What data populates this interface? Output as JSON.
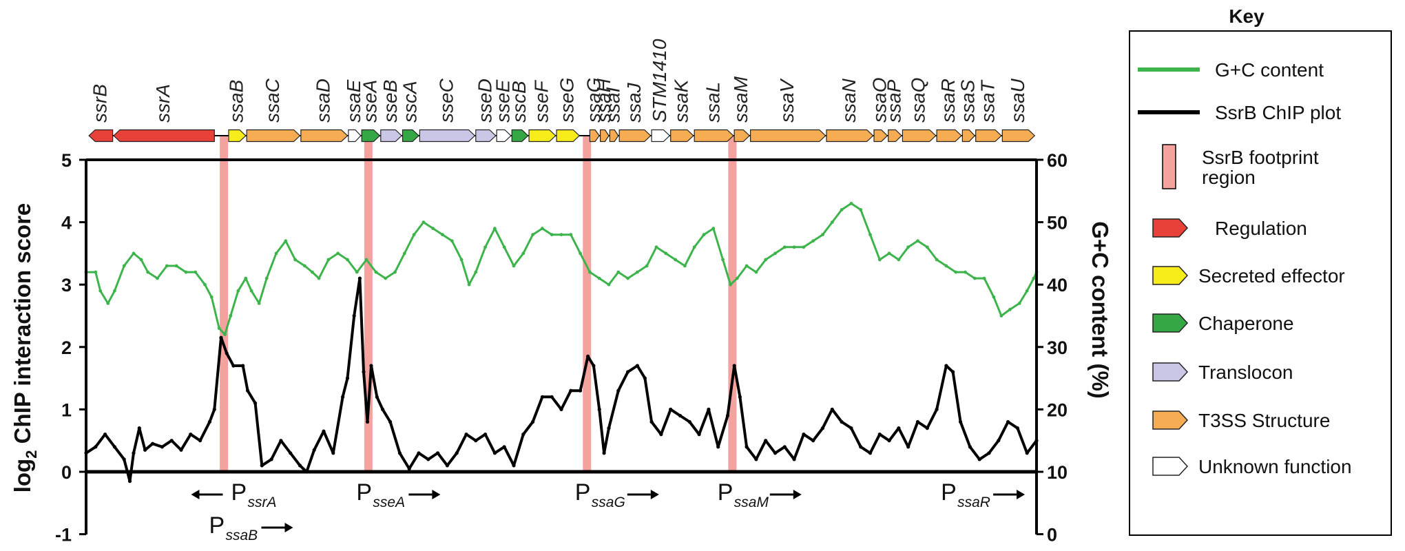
{
  "colors": {
    "regulation": "#e8413a",
    "secreted_effector": "#f5ec1a",
    "chaperone": "#35a845",
    "translocon": "#c9c6e6",
    "t3ss_structure": "#f5ac52",
    "unknown_function": "#ffffff",
    "footprint": "#f4a29e",
    "gc_line": "#3cb44b",
    "chip_line": "#000000"
  },
  "chart_data": {
    "type": "line",
    "x_range": [
      0,
      100
    ],
    "left_axis": {
      "label_prefix": "log",
      "label_sub": "2",
      "label_suffix": " ChIP interaction score",
      "range": [
        -1,
        5
      ],
      "ticks": [
        "-1",
        "0",
        "1",
        "2",
        "3",
        "4",
        "5"
      ]
    },
    "right_axis": {
      "label": "G+C content (%)",
      "range": [
        0,
        60
      ],
      "ticks": [
        "0",
        "10",
        "20",
        "30",
        "40",
        "50",
        "60"
      ]
    },
    "genes": [
      {
        "name": "ssrB",
        "start": 0.3,
        "end": 2.8,
        "dir": -1,
        "cat": "regulation"
      },
      {
        "name": "ssrA",
        "start": 2.9,
        "end": 13.5,
        "dir": -1,
        "cat": "regulation"
      },
      {
        "name": "ssaB",
        "start": 15.0,
        "end": 16.8,
        "dir": 1,
        "cat": "secreted_effector"
      },
      {
        "name": "ssaC",
        "start": 16.9,
        "end": 22.5,
        "dir": 1,
        "cat": "t3ss_structure"
      },
      {
        "name": "ssaD",
        "start": 22.6,
        "end": 27.5,
        "dir": 1,
        "cat": "t3ss_structure"
      },
      {
        "name": "ssaE",
        "start": 27.6,
        "end": 28.9,
        "dir": 1,
        "cat": "unknown_function"
      },
      {
        "name": "sseA",
        "start": 29.0,
        "end": 30.9,
        "dir": 1,
        "cat": "chaperone"
      },
      {
        "name": "sseB",
        "start": 31.0,
        "end": 33.2,
        "dir": 1,
        "cat": "translocon"
      },
      {
        "name": "sscA",
        "start": 33.3,
        "end": 35.0,
        "dir": 1,
        "cat": "chaperone"
      },
      {
        "name": "sseC",
        "start": 35.1,
        "end": 40.9,
        "dir": 1,
        "cat": "translocon"
      },
      {
        "name": "sseD",
        "start": 41.0,
        "end": 43.1,
        "dir": 1,
        "cat": "translocon"
      },
      {
        "name": "sseE",
        "start": 43.2,
        "end": 44.7,
        "dir": 1,
        "cat": "unknown_function"
      },
      {
        "name": "sscB",
        "start": 44.8,
        "end": 46.5,
        "dir": 1,
        "cat": "chaperone"
      },
      {
        "name": "sseF",
        "start": 46.6,
        "end": 49.4,
        "dir": 1,
        "cat": "secreted_effector"
      },
      {
        "name": "sseG",
        "start": 49.5,
        "end": 51.9,
        "dir": 1,
        "cat": "secreted_effector"
      },
      {
        "name": "ssaG",
        "start": 53.0,
        "end": 54.0,
        "dir": 1,
        "cat": "t3ss_structure"
      },
      {
        "name": "ssaH",
        "start": 54.1,
        "end": 55.0,
        "dir": 1,
        "cat": "t3ss_structure"
      },
      {
        "name": "ssaI",
        "start": 55.1,
        "end": 56.0,
        "dir": 1,
        "cat": "t3ss_structure"
      },
      {
        "name": "ssaJ",
        "start": 56.1,
        "end": 59.4,
        "dir": 1,
        "cat": "t3ss_structure"
      },
      {
        "name": "STM1410",
        "start": 59.5,
        "end": 61.4,
        "dir": 1,
        "cat": "unknown_function"
      },
      {
        "name": "ssaK",
        "start": 61.5,
        "end": 63.9,
        "dir": 1,
        "cat": "t3ss_structure"
      },
      {
        "name": "ssaL",
        "start": 64.0,
        "end": 68.1,
        "dir": 1,
        "cat": "t3ss_structure"
      },
      {
        "name": "ssaM",
        "start": 68.2,
        "end": 69.8,
        "dir": 1,
        "cat": "t3ss_structure"
      },
      {
        "name": "ssaV",
        "start": 69.9,
        "end": 77.8,
        "dir": 1,
        "cat": "t3ss_structure"
      },
      {
        "name": "ssaN",
        "start": 77.9,
        "end": 82.8,
        "dir": 1,
        "cat": "t3ss_structure"
      },
      {
        "name": "ssaO",
        "start": 82.9,
        "end": 84.3,
        "dir": 1,
        "cat": "t3ss_structure"
      },
      {
        "name": "ssaP",
        "start": 84.4,
        "end": 85.8,
        "dir": 1,
        "cat": "t3ss_structure"
      },
      {
        "name": "ssaQ",
        "start": 85.9,
        "end": 89.4,
        "dir": 1,
        "cat": "t3ss_structure"
      },
      {
        "name": "ssaR",
        "start": 89.5,
        "end": 92.1,
        "dir": 1,
        "cat": "t3ss_structure"
      },
      {
        "name": "ssaS",
        "start": 92.2,
        "end": 93.5,
        "dir": 1,
        "cat": "t3ss_structure"
      },
      {
        "name": "ssaT",
        "start": 93.6,
        "end": 96.3,
        "dir": 1,
        "cat": "t3ss_structure"
      },
      {
        "name": "ssaU",
        "start": 96.4,
        "end": 99.8,
        "dir": 1,
        "cat": "t3ss_structure"
      }
    ],
    "footprints": [
      14.5,
      29.7,
      52.7,
      68.0
    ],
    "promoters": [
      {
        "main": "P",
        "sub": "ssrA",
        "x": 12.5,
        "row": 0,
        "dir": -1
      },
      {
        "main": "P",
        "sub": "ssaB",
        "x": 12.5,
        "row": 1,
        "dir": 1
      },
      {
        "main": "P",
        "sub": "sseA",
        "x": 28.0,
        "row": 0,
        "dir": 1
      },
      {
        "main": "P",
        "sub": "ssaG",
        "x": 51.0,
        "row": 0,
        "dir": 1
      },
      {
        "main": "P",
        "sub": "ssaM",
        "x": 66.0,
        "row": 0,
        "dir": 1
      },
      {
        "main": "P",
        "sub": "ssaR",
        "x": 89.5,
        "row": 0,
        "dir": 1
      }
    ],
    "series": [
      {
        "name": "SsrB ChIP plot",
        "axis": "left",
        "points": [
          [
            0,
            0.3
          ],
          [
            1,
            0.4
          ],
          [
            2,
            0.6
          ],
          [
            3,
            0.4
          ],
          [
            4,
            0.2
          ],
          [
            4.6,
            -0.15
          ],
          [
            5,
            0.3
          ],
          [
            5.6,
            0.7
          ],
          [
            6.2,
            0.35
          ],
          [
            7,
            0.45
          ],
          [
            8,
            0.4
          ],
          [
            9,
            0.5
          ],
          [
            10,
            0.35
          ],
          [
            11,
            0.6
          ],
          [
            12,
            0.5
          ],
          [
            13,
            0.8
          ],
          [
            13.5,
            1.0
          ],
          [
            14.2,
            2.15
          ],
          [
            14.8,
            1.9
          ],
          [
            15.5,
            1.7
          ],
          [
            16.5,
            1.7
          ],
          [
            17,
            1.3
          ],
          [
            17.8,
            1.1
          ],
          [
            18.5,
            0.1
          ],
          [
            19.5,
            0.2
          ],
          [
            20.5,
            0.5
          ],
          [
            21.5,
            0.3
          ],
          [
            22.5,
            0.1
          ],
          [
            23.2,
            0.0
          ],
          [
            24,
            0.35
          ],
          [
            25,
            0.65
          ],
          [
            26,
            0.3
          ],
          [
            27,
            1.2
          ],
          [
            27.5,
            1.5
          ],
          [
            28.2,
            2.5
          ],
          [
            28.8,
            3.1
          ],
          [
            29.2,
            1.6
          ],
          [
            29.6,
            0.8
          ],
          [
            30,
            1.7
          ],
          [
            30.6,
            1.2
          ],
          [
            31.2,
            1.0
          ],
          [
            32,
            0.8
          ],
          [
            33,
            0.3
          ],
          [
            34,
            0.05
          ],
          [
            35,
            0.3
          ],
          [
            36,
            0.2
          ],
          [
            37,
            0.3
          ],
          [
            38,
            0.1
          ],
          [
            39,
            0.3
          ],
          [
            40,
            0.6
          ],
          [
            41,
            0.5
          ],
          [
            42,
            0.6
          ],
          [
            43,
            0.3
          ],
          [
            44,
            0.4
          ],
          [
            45,
            0.1
          ],
          [
            46,
            0.6
          ],
          [
            47,
            0.8
          ],
          [
            48,
            1.2
          ],
          [
            49,
            1.2
          ],
          [
            50,
            1.0
          ],
          [
            51,
            1.3
          ],
          [
            52,
            1.3
          ],
          [
            52.8,
            1.85
          ],
          [
            53.4,
            1.7
          ],
          [
            54,
            1.0
          ],
          [
            54.5,
            0.3
          ],
          [
            55,
            0.7
          ],
          [
            56,
            1.3
          ],
          [
            57,
            1.6
          ],
          [
            58,
            1.7
          ],
          [
            58.8,
            1.5
          ],
          [
            59.5,
            0.8
          ],
          [
            60.5,
            0.6
          ],
          [
            61.5,
            1.0
          ],
          [
            62.5,
            0.9
          ],
          [
            63.5,
            0.8
          ],
          [
            64.5,
            0.6
          ],
          [
            65.5,
            1.0
          ],
          [
            66.5,
            0.4
          ],
          [
            67.5,
            0.9
          ],
          [
            68.2,
            1.7
          ],
          [
            68.8,
            1.2
          ],
          [
            69.5,
            0.4
          ],
          [
            70.5,
            0.2
          ],
          [
            71.5,
            0.5
          ],
          [
            72.5,
            0.3
          ],
          [
            73.5,
            0.4
          ],
          [
            74.5,
            0.2
          ],
          [
            75.5,
            0.6
          ],
          [
            76.5,
            0.5
          ],
          [
            77.5,
            0.7
          ],
          [
            78.5,
            1.0
          ],
          [
            79.5,
            0.8
          ],
          [
            80.5,
            0.7
          ],
          [
            81.5,
            0.4
          ],
          [
            82.5,
            0.3
          ],
          [
            83.5,
            0.6
          ],
          [
            84.5,
            0.5
          ],
          [
            85.5,
            0.7
          ],
          [
            86.5,
            0.4
          ],
          [
            87.5,
            0.8
          ],
          [
            88.5,
            0.7
          ],
          [
            89.5,
            1.0
          ],
          [
            90.5,
            1.7
          ],
          [
            91.2,
            1.6
          ],
          [
            92,
            0.8
          ],
          [
            93,
            0.4
          ],
          [
            94,
            0.2
          ],
          [
            95,
            0.3
          ],
          [
            96,
            0.5
          ],
          [
            97,
            0.8
          ],
          [
            98,
            0.7
          ],
          [
            99,
            0.3
          ],
          [
            100,
            0.5
          ]
        ]
      },
      {
        "name": "G+C content",
        "axis": "right",
        "points": [
          [
            0,
            42
          ],
          [
            1,
            42
          ],
          [
            1.5,
            39
          ],
          [
            2.3,
            37
          ],
          [
            3,
            39
          ],
          [
            4,
            43
          ],
          [
            5,
            45
          ],
          [
            5.8,
            44
          ],
          [
            6.5,
            42
          ],
          [
            7.5,
            41
          ],
          [
            8.5,
            43
          ],
          [
            9.5,
            43
          ],
          [
            10.5,
            42
          ],
          [
            11.5,
            42
          ],
          [
            12.5,
            40
          ],
          [
            13.2,
            38
          ],
          [
            14,
            33
          ],
          [
            14.6,
            32
          ],
          [
            15.2,
            35
          ],
          [
            16,
            39
          ],
          [
            16.8,
            41
          ],
          [
            17.4,
            39
          ],
          [
            18.2,
            37
          ],
          [
            19,
            41
          ],
          [
            20,
            45
          ],
          [
            21,
            47
          ],
          [
            22,
            44
          ],
          [
            23,
            43
          ],
          [
            23.8,
            42
          ],
          [
            24.5,
            41
          ],
          [
            25.5,
            44
          ],
          [
            26.5,
            45
          ],
          [
            27.5,
            44
          ],
          [
            28.5,
            42
          ],
          [
            29.5,
            44
          ],
          [
            30.5,
            42
          ],
          [
            31.5,
            41
          ],
          [
            32.5,
            42
          ],
          [
            33.5,
            45
          ],
          [
            34.5,
            48
          ],
          [
            35.5,
            50
          ],
          [
            36.5,
            49
          ],
          [
            37.5,
            48
          ],
          [
            38.5,
            47
          ],
          [
            39.5,
            44
          ],
          [
            40.3,
            40
          ],
          [
            41,
            42
          ],
          [
            42,
            46
          ],
          [
            43,
            49
          ],
          [
            44,
            46
          ],
          [
            45,
            43
          ],
          [
            46,
            45
          ],
          [
            47,
            48
          ],
          [
            48,
            49
          ],
          [
            49,
            48
          ],
          [
            50,
            48
          ],
          [
            51,
            48
          ],
          [
            52,
            45
          ],
          [
            53,
            42
          ],
          [
            54,
            41
          ],
          [
            55,
            40
          ],
          [
            56,
            42
          ],
          [
            57,
            41
          ],
          [
            58,
            42
          ],
          [
            59,
            43
          ],
          [
            60,
            46
          ],
          [
            61,
            45
          ],
          [
            62,
            44
          ],
          [
            63,
            43
          ],
          [
            64,
            46
          ],
          [
            65,
            48
          ],
          [
            66,
            49
          ],
          [
            67,
            44
          ],
          [
            67.8,
            40
          ],
          [
            68.5,
            41
          ],
          [
            69.5,
            43
          ],
          [
            70.5,
            42
          ],
          [
            71.5,
            44
          ],
          [
            72.5,
            45
          ],
          [
            73.5,
            46
          ],
          [
            74.5,
            46
          ],
          [
            75.5,
            46
          ],
          [
            76.5,
            47
          ],
          [
            77.5,
            48
          ],
          [
            78.5,
            50
          ],
          [
            79.5,
            52
          ],
          [
            80.5,
            53
          ],
          [
            81.5,
            52
          ],
          [
            82.5,
            48
          ],
          [
            83.5,
            44
          ],
          [
            84.5,
            45
          ],
          [
            85.5,
            44
          ],
          [
            86.5,
            46
          ],
          [
            87.5,
            47
          ],
          [
            88.5,
            46
          ],
          [
            89.5,
            44
          ],
          [
            90.5,
            43
          ],
          [
            91.5,
            42
          ],
          [
            92.5,
            42
          ],
          [
            93.5,
            41
          ],
          [
            94.5,
            41
          ],
          [
            95.5,
            38
          ],
          [
            96.3,
            35
          ],
          [
            97.2,
            36
          ],
          [
            98.2,
            37
          ],
          [
            99,
            39
          ],
          [
            99.7,
            41
          ],
          [
            100,
            42
          ]
        ]
      }
    ]
  },
  "key": {
    "title": "Key",
    "gc_label": "G+C content",
    "chip_label": "SsrB ChIP plot",
    "footprint_label_1": "SsrB footprint",
    "footprint_label_2": "region",
    "regulation": "Regulation",
    "secreted_effector": "Secreted effector",
    "chaperone": "Chaperone",
    "translocon": "Translocon",
    "t3ss_structure": "T3SS Structure",
    "unknown_function": "Unknown function"
  }
}
